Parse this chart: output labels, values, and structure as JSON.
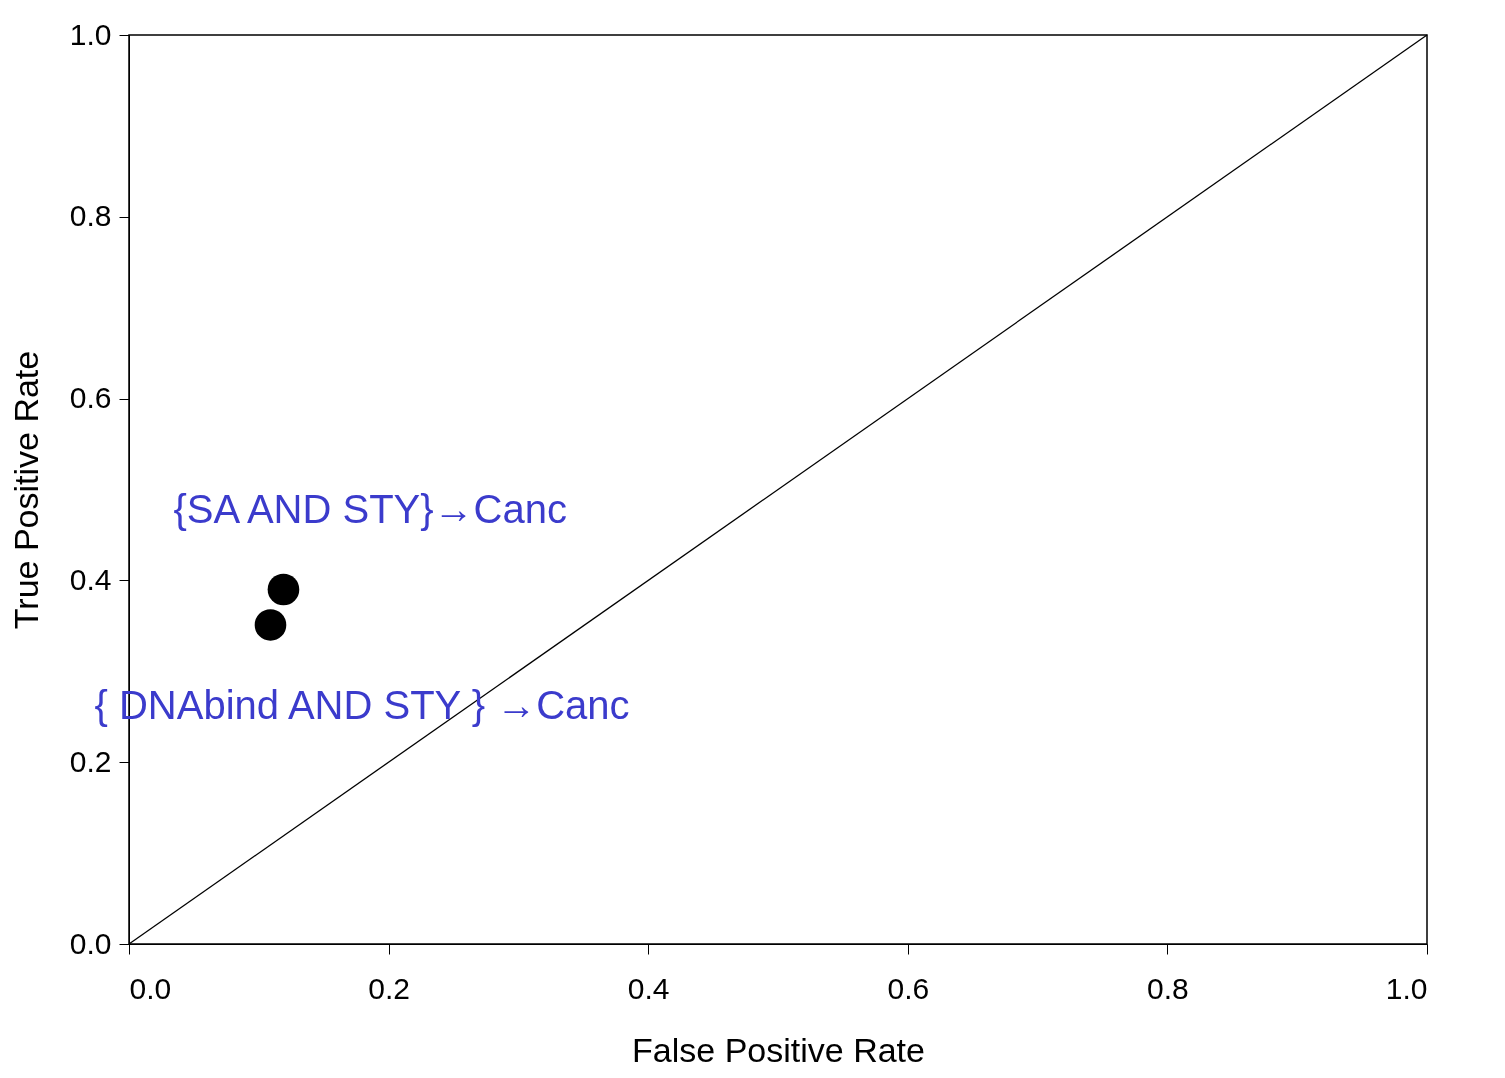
{
  "chart_data": {
    "type": "scatter",
    "xlabel": "False Positive Rate",
    "ylabel": "True Positive Rate",
    "series": [
      {
        "type": "line",
        "marker": "none",
        "color": "#000000",
        "x": [
          0,
          1
        ],
        "values": [
          0,
          1
        ]
      },
      {
        "marker": "circle",
        "color": "#000000",
        "x": [
          0.119,
          0.109
        ],
        "values": [
          0.39,
          0.351
        ]
      }
    ],
    "annotations": [
      {
        "text": "{SA AND STY}→Canc",
        "x": 0.119,
        "y": 0.39
      },
      {
        "text": "{ DNAbind AND STY } →Canc",
        "x": 0.109,
        "y": 0.351
      }
    ],
    "xlim": [
      0,
      1
    ],
    "ylim": [
      0,
      1
    ],
    "xticks": [
      {
        "value": 0,
        "label": "0.0"
      },
      0.2,
      0.4,
      0.6,
      0.8,
      {
        "value": 1,
        "label": "1.0"
      }
    ],
    "yticks": [
      {
        "value": 0,
        "label": "0.0"
      },
      0.2,
      0.4,
      0.6,
      0.8,
      {
        "value": 1,
        "label": "1.0"
      }
    ],
    "grid": false
  }
}
